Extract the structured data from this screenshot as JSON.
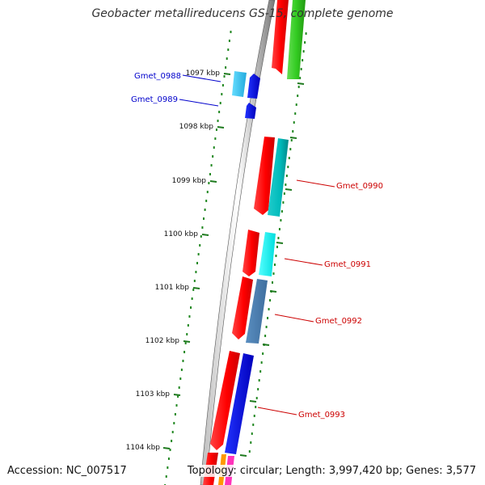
{
  "title": "Geobacter metallireducens GS-15, complete genome",
  "footer": {
    "accession": "Accession: NC_007517",
    "topology": "Topology: circular; Length: 3,997,420 bp; Genes: 3,577"
  },
  "scale": [
    "1097 kbp",
    "1098 kbp",
    "1099 kbp",
    "1100 kbp",
    "1101 kbp",
    "1102 kbp",
    "1103 kbp",
    "1104 kbp"
  ],
  "genes": [
    {
      "label": "Gmet_0988",
      "color": "#0000cc"
    },
    {
      "label": "Gmet_0989",
      "color": "#0000cc"
    },
    {
      "label": "Gmet_0990",
      "color": "#cc0000"
    },
    {
      "label": "Gmet_0991",
      "color": "#cc0000"
    },
    {
      "label": "Gmet_0992",
      "color": "#cc0000"
    },
    {
      "label": "Gmet_0993",
      "color": "#cc0000"
    }
  ]
}
